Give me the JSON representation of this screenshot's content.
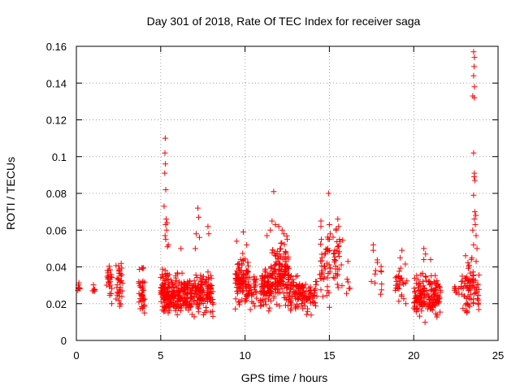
{
  "chart_data": {
    "type": "scatter",
    "title": "Day 301 of 2018, Rate Of TEC Index for receiver saga",
    "xlabel": "GPS time / hours",
    "ylabel": "ROTI / TECUs",
    "xlim": [
      0,
      25
    ],
    "ylim": [
      0,
      0.16
    ],
    "grid": true,
    "marker": "plus",
    "color": "#ff0000",
    "xticks": [
      0,
      5,
      10,
      15,
      20,
      25
    ],
    "xtick_labels": [
      "0",
      "5",
      "10",
      "15",
      "20",
      "25"
    ],
    "yticks": [
      0,
      0.02,
      0.04,
      0.06,
      0.08,
      0.1,
      0.12,
      0.14,
      0.16
    ],
    "ytick_labels": [
      "0",
      "0.02",
      "0.04",
      "0.06",
      "0.08",
      "0.1",
      "0.12",
      "0.14",
      "0.16"
    ],
    "clusters": [
      {
        "x_range": [
          0.05,
          0.25
        ],
        "y_range": [
          0.024,
          0.034
        ],
        "count": 8
      },
      {
        "x_range": [
          0.95,
          1.1
        ],
        "y_range": [
          0.022,
          0.032
        ],
        "count": 6
      },
      {
        "x_range": [
          1.75,
          2.1
        ],
        "y_range": [
          0.015,
          0.05
        ],
        "count": 25
      },
      {
        "x_range": [
          2.35,
          2.75
        ],
        "y_range": [
          0.012,
          0.048
        ],
        "count": 35
      },
      {
        "x_range": [
          3.7,
          4.05
        ],
        "y_range": [
          0.012,
          0.045
        ],
        "count": 40
      },
      {
        "x_range": [
          5.0,
          5.45
        ],
        "y_range": [
          0.01,
          0.045
        ],
        "count": 80
      },
      {
        "x_range": [
          5.45,
          6.5
        ],
        "y_range": [
          0.01,
          0.04
        ],
        "count": 130
      },
      {
        "x_range": [
          6.5,
          8.1
        ],
        "y_range": [
          0.008,
          0.042
        ],
        "count": 170
      },
      {
        "x_range": [
          9.4,
          10.2
        ],
        "y_range": [
          0.015,
          0.05
        ],
        "count": 100
      },
      {
        "x_range": [
          10.2,
          10.7
        ],
        "y_range": [
          0.015,
          0.04
        ],
        "count": 30
      },
      {
        "x_range": [
          10.9,
          11.6
        ],
        "y_range": [
          0.015,
          0.045
        ],
        "count": 90
      },
      {
        "x_range": [
          11.6,
          12.6
        ],
        "y_range": [
          0.012,
          0.06
        ],
        "count": 140
      },
      {
        "x_range": [
          12.6,
          13.5
        ],
        "y_range": [
          0.012,
          0.04
        ],
        "count": 80
      },
      {
        "x_range": [
          13.5,
          14.3
        ],
        "y_range": [
          0.012,
          0.035
        ],
        "count": 45
      },
      {
        "x_range": [
          14.4,
          15.1
        ],
        "y_range": [
          0.015,
          0.065
        ],
        "count": 40
      },
      {
        "x_range": [
          15.2,
          15.8
        ],
        "y_range": [
          0.018,
          0.067
        ],
        "count": 30
      },
      {
        "x_range": [
          16.0,
          16.25
        ],
        "y_range": [
          0.018,
          0.045
        ],
        "count": 5
      },
      {
        "x_range": [
          17.4,
          18.1
        ],
        "y_range": [
          0.016,
          0.052
        ],
        "count": 12
      },
      {
        "x_range": [
          18.8,
          19.6
        ],
        "y_range": [
          0.018,
          0.046
        ],
        "count": 30
      },
      {
        "x_range": [
          20.0,
          21.6
        ],
        "y_range": [
          0.008,
          0.04
        ],
        "count": 160
      },
      {
        "x_range": [
          22.4,
          22.7
        ],
        "y_range": [
          0.02,
          0.032
        ],
        "count": 8
      },
      {
        "x_range": [
          22.8,
          23.9
        ],
        "y_range": [
          0.008,
          0.05
        ],
        "count": 80
      }
    ],
    "outliers": [
      [
        5.27,
        0.11
      ],
      [
        5.25,
        0.102
      ],
      [
        5.28,
        0.096
      ],
      [
        5.24,
        0.091
      ],
      [
        5.3,
        0.082
      ],
      [
        5.2,
        0.073
      ],
      [
        5.32,
        0.066
      ],
      [
        5.29,
        0.063
      ],
      [
        5.38,
        0.064
      ],
      [
        5.35,
        0.06
      ],
      [
        5.3,
        0.055
      ],
      [
        5.4,
        0.051
      ],
      [
        5.26,
        0.057
      ],
      [
        5.45,
        0.052
      ],
      [
        7.2,
        0.072
      ],
      [
        7.25,
        0.067
      ],
      [
        7.1,
        0.058
      ],
      [
        7.3,
        0.056
      ],
      [
        7.05,
        0.05
      ],
      [
        6.2,
        0.05
      ],
      [
        7.8,
        0.062
      ],
      [
        7.85,
        0.058
      ],
      [
        9.9,
        0.059
      ],
      [
        9.5,
        0.054
      ],
      [
        10.1,
        0.052
      ],
      [
        11.7,
        0.081
      ],
      [
        11.6,
        0.065
      ],
      [
        11.8,
        0.063
      ],
      [
        12.0,
        0.062
      ],
      [
        12.2,
        0.06
      ],
      [
        12.3,
        0.058
      ],
      [
        12.5,
        0.055
      ],
      [
        11.5,
        0.06
      ],
      [
        11.3,
        0.057
      ],
      [
        14.5,
        0.065
      ],
      [
        14.5,
        0.062
      ],
      [
        14.95,
        0.08
      ],
      [
        15.0,
        0.063
      ],
      [
        15.05,
        0.058
      ],
      [
        15.0,
        0.055
      ],
      [
        14.9,
        0.05
      ],
      [
        15.5,
        0.066
      ],
      [
        15.55,
        0.062
      ],
      [
        15.4,
        0.06
      ],
      [
        15.6,
        0.055
      ],
      [
        15.5,
        0.051
      ],
      [
        15.3,
        0.044
      ],
      [
        16.1,
        0.043
      ],
      [
        17.6,
        0.052
      ],
      [
        17.6,
        0.049
      ],
      [
        19.3,
        0.049
      ],
      [
        19.2,
        0.045
      ],
      [
        20.6,
        0.05
      ],
      [
        20.7,
        0.047
      ],
      [
        20.6,
        0.044
      ],
      [
        21.0,
        0.044
      ],
      [
        23.55,
        0.157
      ],
      [
        23.6,
        0.154
      ],
      [
        23.58,
        0.149
      ],
      [
        23.55,
        0.144
      ],
      [
        23.6,
        0.138
      ],
      [
        23.5,
        0.133
      ],
      [
        23.6,
        0.132
      ],
      [
        23.55,
        0.102
      ],
      [
        23.6,
        0.091
      ],
      [
        23.58,
        0.089
      ],
      [
        23.62,
        0.087
      ],
      [
        23.55,
        0.079
      ],
      [
        23.62,
        0.07
      ],
      [
        23.68,
        0.068
      ],
      [
        23.6,
        0.066
      ],
      [
        23.65,
        0.063
      ],
      [
        23.5,
        0.06
      ],
      [
        23.7,
        0.057
      ],
      [
        23.55,
        0.052
      ],
      [
        23.75,
        0.05
      ],
      [
        23.45,
        0.045
      ],
      [
        23.7,
        0.043
      ]
    ]
  }
}
